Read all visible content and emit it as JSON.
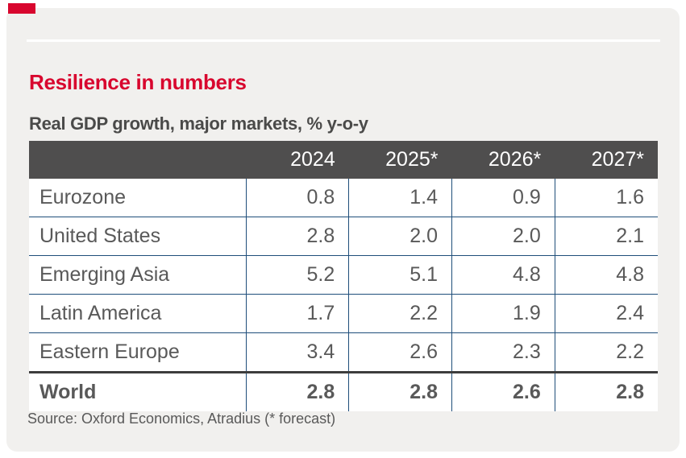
{
  "header": {
    "title": "Resilience in numbers",
    "subtitle": "Real GDP growth, major markets, % y-o-y"
  },
  "table": {
    "columns": [
      "2024",
      "2025*",
      "2026*",
      "2027*"
    ],
    "rows": [
      {
        "label": "Eurozone",
        "values": [
          "0.8",
          "1.4",
          "0.9",
          "1.6"
        ]
      },
      {
        "label": "United States",
        "values": [
          "2.8",
          "2.0",
          "2.0",
          "2.1"
        ]
      },
      {
        "label": "Emerging Asia",
        "values": [
          "5.2",
          "5.1",
          "4.8",
          "4.8"
        ]
      },
      {
        "label": "Latin America",
        "values": [
          "1.7",
          "2.2",
          "1.9",
          "2.4"
        ]
      },
      {
        "label": "Eastern Europe",
        "values": [
          "3.4",
          "2.6",
          "2.3",
          "2.2"
        ]
      },
      {
        "label": "World",
        "values": [
          "2.8",
          "2.8",
          "2.6",
          "2.8"
        ]
      }
    ]
  },
  "footer": {
    "source": "Source: Oxford Economics, Atradius (* forecast)"
  },
  "colors": {
    "accent_red": "#d8062e",
    "header_bg": "#4f4e4e",
    "body_text": "#595959",
    "subtitle_text": "#4a4a49",
    "border_navy": "#1f4e7a",
    "total_rule": "#3d3d3d",
    "panel_bg": "#f1f0ee"
  },
  "chart_data": {
    "type": "table",
    "title": "Resilience in numbers",
    "subtitle": "Real GDP growth, major markets, % y-o-y",
    "unit": "% y-o-y real GDP growth",
    "columns": [
      "2024",
      "2025*",
      "2026*",
      "2027*"
    ],
    "rows": [
      {
        "label": "Eurozone",
        "values": [
          0.8,
          1.4,
          0.9,
          1.6
        ]
      },
      {
        "label": "United States",
        "values": [
          2.8,
          2.0,
          2.0,
          2.1
        ]
      },
      {
        "label": "Emerging Asia",
        "values": [
          5.2,
          5.1,
          4.8,
          4.8
        ]
      },
      {
        "label": "Latin America",
        "values": [
          1.7,
          2.2,
          1.9,
          2.4
        ]
      },
      {
        "label": "Eastern Europe",
        "values": [
          3.4,
          2.6,
          2.3,
          2.2
        ]
      },
      {
        "label": "World",
        "values": [
          2.8,
          2.8,
          2.6,
          2.8
        ]
      }
    ],
    "footnote": "* forecast",
    "source": "Oxford Economics, Atradius"
  }
}
